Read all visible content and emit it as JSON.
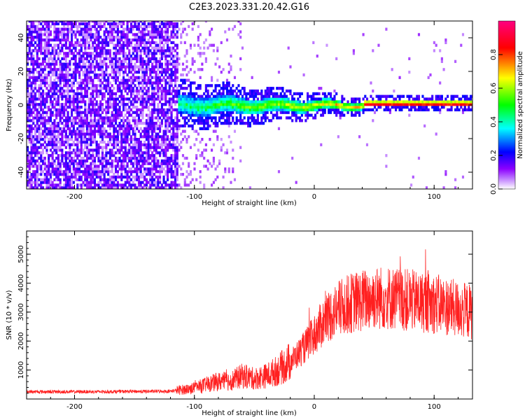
{
  "title": "C2E3.2023.331.20.42.G16",
  "chart_data": [
    {
      "type": "heatmap",
      "title": "C2E3.2023.331.20.42.G16",
      "xlabel": "Height of straight line (km)",
      "ylabel": "Frequency (Hz)",
      "xlim": [
        -240,
        132
      ],
      "ylim": [
        -50,
        50
      ],
      "xticks": [
        -200,
        -100,
        0,
        100
      ],
      "yticks": [
        -40,
        -20,
        0,
        20,
        40
      ],
      "grid": false,
      "colorbar": {
        "label": "Normalized spectral amplitude",
        "ticks": [
          0.0,
          0.2,
          0.4,
          0.6,
          0.8
        ],
        "range": [
          0,
          1
        ],
        "colormap": [
          "#ffffff",
          "#8c00ff",
          "#0000ff",
          "#00ffff",
          "#00ff00",
          "#ffff00",
          "#ff0000",
          "#ff0080"
        ]
      },
      "regions": [
        {
          "description_x_range": [
            -240,
            -115
          ],
          "pattern": "noise",
          "amplitude": 0.12
        },
        {
          "description_x_range": [
            -115,
            40
          ],
          "pattern": "band-near-0Hz",
          "band_halfwidth_hz": [
            6,
            2
          ],
          "peak_amplitude": [
            0.4,
            0.8
          ]
        },
        {
          "description_x_range": [
            40,
            132
          ],
          "pattern": "band-near-0Hz",
          "band_halfwidth_hz": [
            2,
            1.5
          ],
          "peak_amplitude": [
            0.9,
            1.0
          ]
        }
      ]
    },
    {
      "type": "line",
      "xlabel": "Height of straight line (km)",
      "ylabel": "SNR (10 * v/v)",
      "xlim": [
        -240,
        132
      ],
      "ylim": [
        0,
        5800
      ],
      "xticks": [
        -200,
        -100,
        0,
        100
      ],
      "yticks": [
        1000,
        2000,
        3000,
        4000,
        5000
      ],
      "grid": false,
      "color": "#ff0000",
      "series": [
        {
          "x": [
            -240,
            -220,
            -200,
            -180,
            -160,
            -140,
            -120,
            -110,
            -100,
            -90,
            -80,
            -70,
            -60,
            -50,
            -40,
            -30,
            -20,
            -10,
            0,
            10,
            20,
            30,
            40,
            50,
            60,
            70,
            80,
            90,
            100,
            110,
            120,
            132
          ],
          "y": [
            250,
            250,
            250,
            250,
            260,
            260,
            270,
            320,
            380,
            500,
            600,
            620,
            800,
            700,
            800,
            1000,
            1300,
            1700,
            2200,
            2800,
            3100,
            3300,
            3400,
            3500,
            3500,
            3450,
            3400,
            3350,
            3300,
            3200,
            3100,
            3000
          ]
        }
      ]
    }
  ]
}
